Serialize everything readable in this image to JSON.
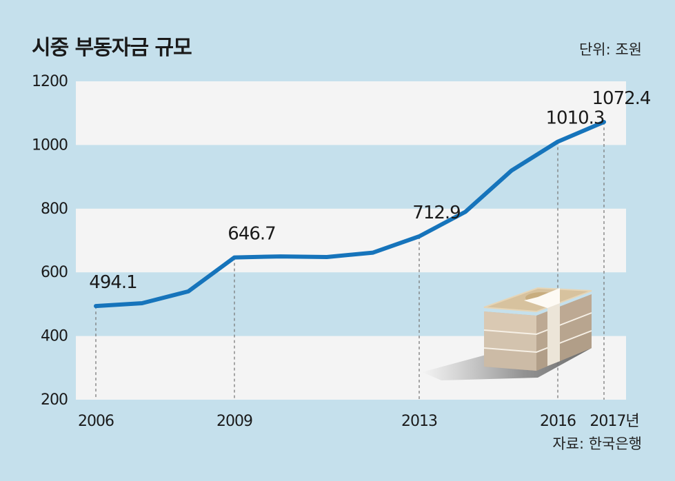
{
  "chart_data": {
    "type": "line",
    "title": "시중 부동자금 규모",
    "unit_label": "단위: 조원",
    "source": "자료: 한국은행",
    "x": [
      2006,
      2007,
      2008,
      2009,
      2010,
      2011,
      2012,
      2013,
      2014,
      2015,
      2016,
      2017
    ],
    "x_tick_labels": [
      {
        "x": 2006,
        "label": "2006"
      },
      {
        "x": 2009,
        "label": "2009"
      },
      {
        "x": 2013,
        "label": "2013"
      },
      {
        "x": 2016,
        "label": "2016"
      },
      {
        "x": 2017,
        "label": "2017년"
      }
    ],
    "series": [
      {
        "values": [
          494.1,
          503,
          540,
          646.7,
          650,
          648,
          662,
          712.9,
          790,
          920,
          1010.3,
          1072.4
        ],
        "color": "#1674bb"
      }
    ],
    "data_labels": [
      {
        "x": 2006,
        "label": "494.1"
      },
      {
        "x": 2009,
        "label": "646.7"
      },
      {
        "x": 2013,
        "label": "712.9"
      },
      {
        "x": 2016,
        "label": "1010.3"
      },
      {
        "x": 2017,
        "label": "1072.4"
      }
    ],
    "y_ticks": [
      200,
      400,
      600,
      800,
      1000,
      1200
    ],
    "ylim": [
      200,
      1200
    ],
    "xlim": [
      2006,
      2017
    ]
  },
  "colors": {
    "background": "#c5e0ec",
    "plot_band": "#f4f4f4",
    "line": "#1674bb"
  },
  "icons": [
    "money-stack-icon"
  ]
}
